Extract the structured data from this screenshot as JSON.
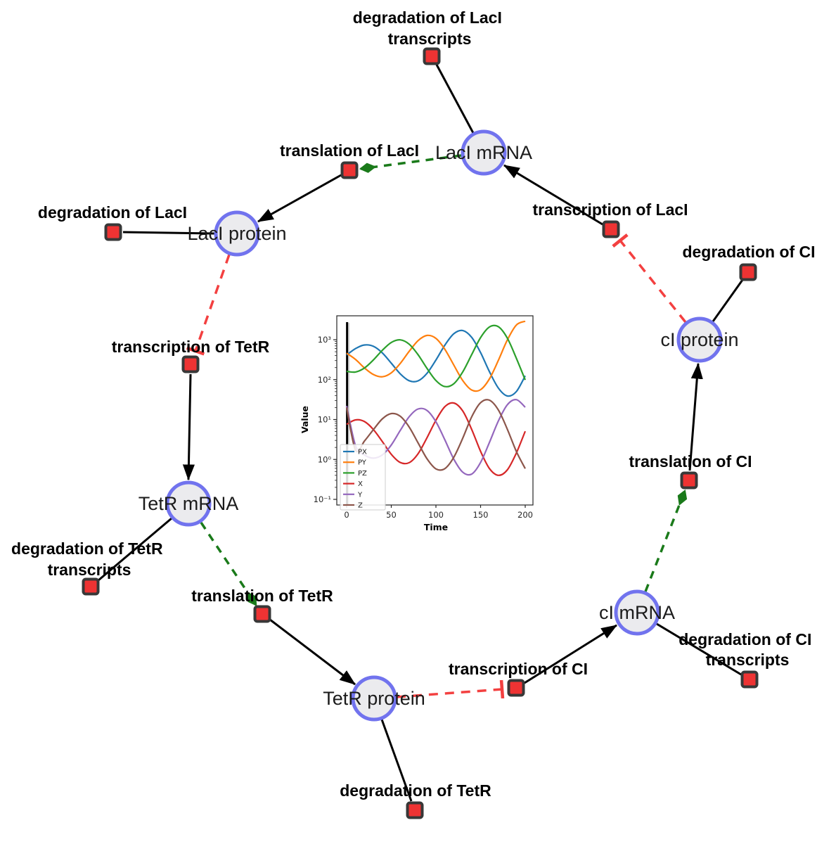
{
  "network": {
    "species": [
      {
        "id": "laci-mrna",
        "label": "LacI mRNA"
      },
      {
        "id": "laci-protein",
        "label": "LacI protein"
      },
      {
        "id": "tetr-mrna",
        "label": "TetR mRNA"
      },
      {
        "id": "tetr-protein",
        "label": "TetR protein"
      },
      {
        "id": "ci-mrna",
        "label": "cI mRNA"
      },
      {
        "id": "ci-protein",
        "label": "cI protein"
      }
    ],
    "reactions": [
      {
        "id": "deg-laci-transcripts",
        "lines": [
          "degradation of LacI",
          "transcripts"
        ]
      },
      {
        "id": "translation-laci",
        "lines": [
          "translation of LacI"
        ]
      },
      {
        "id": "deg-laci",
        "lines": [
          "degradation of LacI"
        ]
      },
      {
        "id": "transcription-laci",
        "lines": [
          "transcription of LacI"
        ]
      },
      {
        "id": "deg-ci",
        "lines": [
          "degradation of CI"
        ]
      },
      {
        "id": "transcription-tetr",
        "lines": [
          "transcription of TetR"
        ]
      },
      {
        "id": "deg-tetr-transcripts",
        "lines": [
          "degradation of TetR",
          "transcripts"
        ]
      },
      {
        "id": "translation-tetr",
        "lines": [
          "translation of TetR"
        ]
      },
      {
        "id": "deg-tetr",
        "lines": [
          "degradation of TetR"
        ]
      },
      {
        "id": "transcription-ci",
        "lines": [
          "transcription of CI"
        ]
      },
      {
        "id": "deg-ci-transcripts",
        "lines": [
          "degradation of CI",
          "transcripts"
        ]
      },
      {
        "id": "translation-ci",
        "lines": [
          "translation of CI"
        ]
      }
    ],
    "edges": [
      {
        "source": "LacI mRNA",
        "target": "degradation of LacI transcripts",
        "type": "reactant",
        "style": "solid-black"
      },
      {
        "source": "LacI mRNA",
        "target": "translation of LacI",
        "type": "modifier",
        "style": "dashed-green-arrow"
      },
      {
        "source": "translation of LacI",
        "target": "LacI protein",
        "type": "product",
        "style": "solid-black-arrow"
      },
      {
        "source": "LacI protein",
        "target": "degradation of LacI",
        "type": "reactant",
        "style": "solid-black"
      },
      {
        "source": "LacI protein",
        "target": "transcription of TetR",
        "type": "inhibition",
        "style": "dashed-red-tee"
      },
      {
        "source": "transcription of TetR",
        "target": "TetR mRNA",
        "type": "product",
        "style": "solid-black-arrow"
      },
      {
        "source": "TetR mRNA",
        "target": "degradation of TetR transcripts",
        "type": "reactant",
        "style": "solid-black"
      },
      {
        "source": "TetR mRNA",
        "target": "translation of TetR",
        "type": "modifier",
        "style": "dashed-green-arrow"
      },
      {
        "source": "translation of TetR",
        "target": "TetR protein",
        "type": "product",
        "style": "solid-black-arrow"
      },
      {
        "source": "TetR protein",
        "target": "degradation of TetR",
        "type": "reactant",
        "style": "solid-black"
      },
      {
        "source": "TetR protein",
        "target": "transcription of CI",
        "type": "inhibition",
        "style": "dashed-red-tee"
      },
      {
        "source": "transcription of CI",
        "target": "cI mRNA",
        "type": "product",
        "style": "solid-black-arrow"
      },
      {
        "source": "cI mRNA",
        "target": "degradation of CI transcripts",
        "type": "reactant",
        "style": "solid-black"
      },
      {
        "source": "cI mRNA",
        "target": "translation of CI",
        "type": "modifier",
        "style": "dashed-green-arrow"
      },
      {
        "source": "translation of CI",
        "target": "cI protein",
        "type": "product",
        "style": "solid-black-arrow"
      },
      {
        "source": "cI protein",
        "target": "degradation of CI",
        "type": "reactant",
        "style": "solid-black"
      },
      {
        "source": "cI protein",
        "target": "transcription of LacI",
        "type": "inhibition",
        "style": "dashed-red-tee"
      },
      {
        "source": "transcription of LacI",
        "target": "LacI mRNA",
        "type": "product",
        "style": "solid-black-arrow"
      }
    ],
    "colors": {
      "species_fill": "#ebebee",
      "species_border": "#7173ee",
      "reaction_fill": "#ee3333",
      "reaction_border": "#383838",
      "edge_black": "#000000",
      "edge_green": "#1a7a1a",
      "edge_red": "#f34040"
    }
  },
  "chart_data": {
    "type": "line",
    "title": "",
    "xlabel": "Time",
    "ylabel": "Value",
    "yscale": "log",
    "xlim": [
      -10,
      208
    ],
    "ylim": [
      0.07,
      5000
    ],
    "xticks": [
      0,
      50,
      100,
      150,
      200
    ],
    "ytick_values": [
      1000,
      100,
      10,
      1,
      0.1
    ],
    "ytick_labels": [
      "10³",
      "10²",
      "10¹",
      "10⁰",
      "10⁻¹"
    ],
    "vline_x": 0.5,
    "legend_position": "lower left",
    "grid": false,
    "x": [
      0,
      10,
      20,
      30,
      40,
      50,
      60,
      70,
      80,
      90,
      100,
      110,
      120,
      130,
      140,
      150,
      160,
      170,
      180,
      190,
      200
    ],
    "series": [
      {
        "name": "PX",
        "color": "#1f77b4",
        "values": [
          413,
          600,
          738,
          682,
          466,
          258,
          140,
          94,
          93,
          144,
          310,
          733,
          1410,
          1700,
          1150,
          475,
          157,
          61,
          39,
          50,
          125
        ]
      },
      {
        "name": "PY",
        "color": "#ff7f0e",
        "values": [
          460,
          320,
          196,
          134,
          118,
          148,
          254,
          510,
          947,
          1280,
          1080,
          575,
          232,
          95,
          55,
          56,
          105,
          307,
          987,
          2330,
          2910
        ]
      },
      {
        "name": "PZ",
        "color": "#2ca02c",
        "values": [
          161,
          155,
          196,
          312,
          545,
          853,
          991,
          773,
          421,
          191,
          95,
          67,
          79,
          156,
          422,
          1130,
          2090,
          2110,
          1090,
          346,
          98
        ]
      },
      {
        "name": "X",
        "color": "#d62728",
        "values": [
          7.6,
          9.8,
          8.9,
          5.6,
          2.8,
          1.35,
          0.84,
          0.83,
          1.39,
          3.5,
          9.6,
          21,
          26,
          16.4,
          5.7,
          1.6,
          0.59,
          0.4,
          0.55,
          1.44,
          5.1
        ]
      },
      {
        "name": "Y",
        "color": "#9467bd",
        "values": [
          22,
          2.2,
          1.3,
          1.08,
          1.3,
          2.3,
          5.3,
          11.7,
          18.4,
          16.9,
          8.8,
          3.1,
          1.02,
          0.48,
          0.43,
          0.84,
          2.7,
          9.3,
          23.5,
          31.5,
          20.3
        ]
      },
      {
        "name": "Z",
        "color": "#8c564b",
        "values": [
          20,
          1.7,
          2.9,
          5.6,
          10.4,
          14.1,
          12.1,
          6.5,
          2.6,
          1.04,
          0.58,
          0.59,
          1.13,
          3.4,
          11.6,
          26.4,
          30.5,
          17.2,
          5.7,
          1.6,
          0.59
        ]
      }
    ]
  }
}
